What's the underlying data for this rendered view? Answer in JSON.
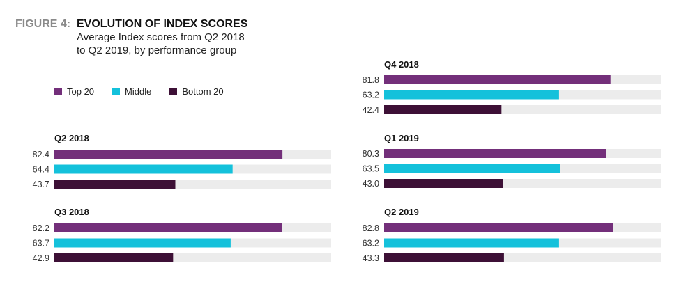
{
  "figure_label": "FIGURE 4:",
  "chart_data": {
    "type": "bar",
    "orientation": "horizontal",
    "title": "EVOLUTION OF INDEX SCORES",
    "subtitle_lines": [
      "Average Index scores from Q2 2018",
      "to Q2 2019, by performance group"
    ],
    "xlim": [
      0,
      100
    ],
    "grid": false,
    "legend_placement": "top-left",
    "series": [
      {
        "name": "Top 20",
        "color": "#732f7a"
      },
      {
        "name": "Middle",
        "color": "#14c1db"
      },
      {
        "name": "Bottom 20",
        "color": "#3d1036"
      }
    ],
    "track_color": "#ececec",
    "panels": [
      {
        "title": "Q2 2018",
        "values": [
          82.4,
          64.4,
          43.7
        ],
        "labels": [
          "82.4",
          "64.4",
          "43.7"
        ]
      },
      {
        "title": "Q3 2018",
        "values": [
          82.2,
          63.7,
          42.9
        ],
        "labels": [
          "82.2",
          "63.7",
          "42.9"
        ]
      },
      {
        "title": "Q4 2018",
        "values": [
          81.8,
          63.2,
          42.4
        ],
        "labels": [
          "81.8",
          "63.2",
          "42.4"
        ]
      },
      {
        "title": "Q1 2019",
        "values": [
          80.3,
          63.5,
          43.0
        ],
        "labels": [
          "80.3",
          "63.5",
          "43.0"
        ]
      },
      {
        "title": "Q2 2019",
        "values": [
          82.8,
          63.2,
          43.3
        ],
        "labels": [
          "82.8",
          "63.2",
          "43.3"
        ]
      }
    ]
  }
}
